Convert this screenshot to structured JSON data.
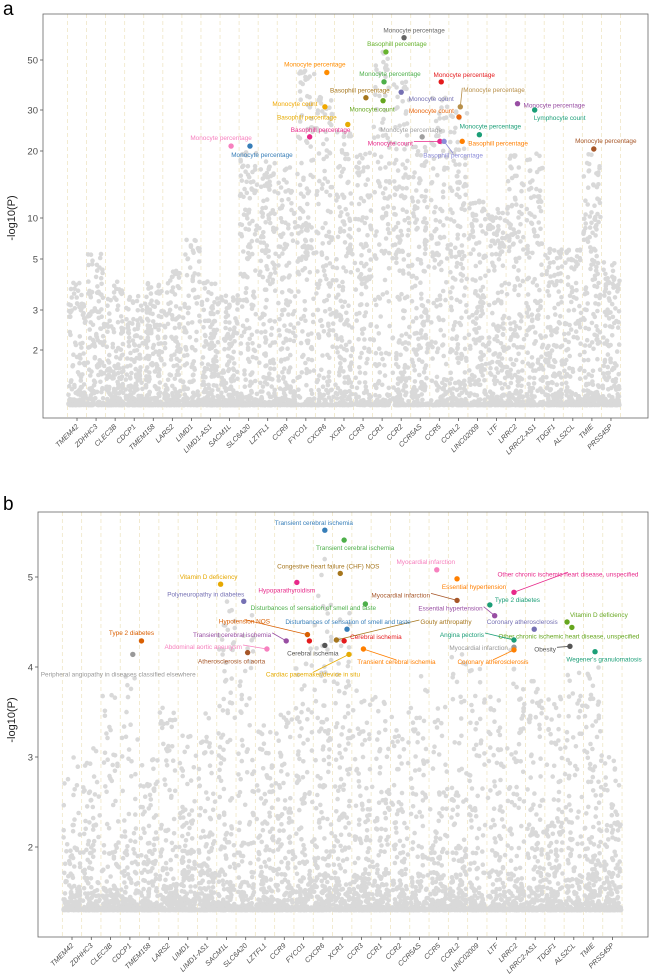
{
  "chart_data": [
    {
      "panel": "a",
      "type": "scatter",
      "ylabel": "-log10(P)",
      "yscale": "log",
      "yticks": [
        2,
        3,
        5,
        10,
        20,
        30,
        50
      ],
      "ylim": [
        1.3,
        80
      ],
      "genes": [
        "TMEM42",
        "ZDHHC3",
        "CLEC3B",
        "CDCP1",
        "TMEM158",
        "LARS2",
        "LIMD1",
        "LIMD1-AS1",
        "SACM1L",
        "SLC6A20",
        "LZTFL1",
        "CCR9",
        "FYCO1",
        "CXCR6",
        "XCR1",
        "CCR3",
        "CCR1",
        "CCR2",
        "CCR5AS",
        "CCR5",
        "CCRL2",
        "LINC02009",
        "LTF",
        "LRRC2",
        "LRRC2-AS1",
        "TDGF1",
        "ALS2CL",
        "TMIE",
        "PRSS45P"
      ],
      "background_max": [
        4,
        5.5,
        4,
        3.5,
        4,
        4.5,
        7,
        4,
        3.5,
        21,
        18,
        17,
        45,
        35,
        25,
        20,
        55,
        40,
        22,
        35,
        30,
        12,
        11,
        20,
        20,
        6,
        6,
        20,
        5
      ],
      "background_color": "#d9d9d9",
      "highlighted": [
        {
          "pos": 17.15,
          "value": 65,
          "label": "Monocyte percentage",
          "color": "#666666"
        },
        {
          "pos": 16.2,
          "value": 55,
          "label": "Basophill percentage",
          "color": "#66b32e"
        },
        {
          "pos": 13.1,
          "value": 44,
          "label": "Monocyte percentage",
          "color": "#ff8c00"
        },
        {
          "pos": 16.1,
          "value": 40,
          "label": "Monocyte percentage",
          "color": "#4daf4a"
        },
        {
          "pos": 19.1,
          "value": 40,
          "label": "Monocyte percentage",
          "color": "#e41a1c"
        },
        {
          "pos": 17.0,
          "value": 36,
          "label": "Monocyte count",
          "color": "#7570b3"
        },
        {
          "pos": 15.15,
          "value": 34,
          "label": "Basophill percentage",
          "color": "#a6761d"
        },
        {
          "pos": 16.05,
          "value": 33,
          "label": "Monocyte count",
          "color": "#66a61e"
        },
        {
          "pos": 13.0,
          "value": 31,
          "label": "Monocyte count",
          "color": "#f0a800"
        },
        {
          "pos": 20.1,
          "value": 31,
          "label": "Monocyte percentage",
          "color": "#b8904a"
        },
        {
          "pos": 20.03,
          "value": 28,
          "label": "Monocyte count",
          "color": "#e8660c"
        },
        {
          "pos": 23.1,
          "value": 32,
          "label": "Monocyte percentage",
          "color": "#984ea3"
        },
        {
          "pos": 24.0,
          "value": 30,
          "label": "Lymphocyte count",
          "color": "#1b9e77"
        },
        {
          "pos": 14.2,
          "value": 26,
          "label": "Basophill percentage",
          "color": "#e6ab02"
        },
        {
          "pos": 12.2,
          "value": 23,
          "label": "Basophill percentage",
          "color": "#e7298a"
        },
        {
          "pos": 18.1,
          "value": 23,
          "label": "Monocyte percentage",
          "color": "#a0a0a0"
        },
        {
          "pos": 21.1,
          "value": 23.5,
          "label": "Monocyte percentage",
          "color": "#1b9e77"
        },
        {
          "pos": 19.03,
          "value": 22,
          "label": "Monocyte count",
          "color": "#e7298a"
        },
        {
          "pos": 19.25,
          "value": 22,
          "label": "Basophill percentage",
          "color": "#8c8cd9"
        },
        {
          "pos": 20.2,
          "value": 22,
          "label": "Basophill percentage",
          "color": "#ff7f00"
        },
        {
          "pos": 8.08,
          "value": 21,
          "label": "Monocyte percentage",
          "color": "#f781bf"
        },
        {
          "pos": 9.07,
          "value": 21,
          "label": "Monocyte percentage",
          "color": "#377eb8"
        },
        {
          "pos": 27.1,
          "value": 20.4,
          "label": "Monocyte percentage",
          "color": "#a65628"
        }
      ]
    },
    {
      "panel": "b",
      "type": "scatter",
      "ylabel": "-log10(P)",
      "yscale": "linear",
      "yticks": [
        2,
        3,
        4,
        5
      ],
      "ylim": [
        1.3,
        5.5
      ],
      "genes": [
        "TMEM42",
        "ZDHHC3",
        "CLEC3B",
        "CDCP1",
        "TMEM158",
        "LARS2",
        "LIMD1",
        "LIMD1-AS1",
        "SACM1L",
        "SLC6A20",
        "LZTFL1",
        "CCR9",
        "FYCO1",
        "CXCR6",
        "XCR1",
        "CCR3",
        "CCR1",
        "CCR2",
        "CCR5AS",
        "CCR5",
        "CCRL2",
        "LINC02009",
        "LTF",
        "LRRC2",
        "LRRC2-AS1",
        "TDGF1",
        "ALS2CL",
        "TMIE",
        "PRSS45P"
      ],
      "background_max": [
        3.1,
        3.1,
        3.7,
        4.0,
        3.0,
        3.6,
        3.3,
        3.5,
        4.8,
        4.6,
        3.5,
        3.5,
        4.3,
        5.2,
        4.6,
        3.8,
        3.7,
        3.5,
        3.9,
        3.6,
        4.2,
        4.0,
        3.9,
        4.2,
        4.0,
        3.7,
        4.0,
        4.0,
        3.0
      ],
      "background_color": "#d9d9d9",
      "highlighted": [
        {
          "pos": 13.1,
          "value": 5.52,
          "label": "Transient cerebral ischemia",
          "color": "#377eb8"
        },
        {
          "pos": 14.1,
          "value": 5.41,
          "label": "Transient cerebral ischemia",
          "color": "#4daf4a"
        },
        {
          "pos": 13.9,
          "value": 5.04,
          "label": "Congestive heart failure (CHF) NOS",
          "color": "#a6761d"
        },
        {
          "pos": 18.9,
          "value": 5.08,
          "label": "Myocardial infarction",
          "color": "#f781bf"
        },
        {
          "pos": 19.95,
          "value": 4.98,
          "label": "Essential hypertension",
          "color": "#ff7f00"
        },
        {
          "pos": 22.9,
          "value": 4.83,
          "label": "Other chronic ischemic heart disease, unspecified",
          "color": "#e7298a"
        },
        {
          "pos": 7.7,
          "value": 4.92,
          "label": "Vitamin D deficiency",
          "color": "#e6a800"
        },
        {
          "pos": 11.65,
          "value": 4.94,
          "label": "Hypoparathyroidism",
          "color": "#e7298a"
        },
        {
          "pos": 8.9,
          "value": 4.73,
          "label": "Polyneuropathy in diabetes",
          "color": "#7570b3"
        },
        {
          "pos": 19.95,
          "value": 4.74,
          "label": "Myocardial infarction",
          "color": "#a65628"
        },
        {
          "pos": 15.2,
          "value": 4.7,
          "label": "Disturbances of sensation of smell and taste",
          "color": "#4daf4a"
        },
        {
          "pos": 21.65,
          "value": 4.69,
          "label": "Type 2 diabetes",
          "color": "#1b9e77"
        },
        {
          "pos": 21.9,
          "value": 4.57,
          "label": "Essential hypertension",
          "color": "#984ea3"
        },
        {
          "pos": 25.65,
          "value": 4.5,
          "label": "Vitamin D deficiency",
          "color": "#66a61e"
        },
        {
          "pos": 25.9,
          "value": 4.44,
          "label": "Other chronic ischemic heart disease, unspecified",
          "color": "#66a61e"
        },
        {
          "pos": 23.95,
          "value": 4.42,
          "label": "Coronary atherosclerosis",
          "color": "#7570b3"
        },
        {
          "pos": 13.7,
          "value": 4.3,
          "label": "Gouty arthropathy",
          "color": "#a6761d"
        },
        {
          "pos": 14.25,
          "value": 4.42,
          "label": "Disturbances of sensation of smell and taste",
          "color": "#377eb8"
        },
        {
          "pos": 12.2,
          "value": 4.36,
          "label": "Hypotension NOS",
          "color": "#d95f02"
        },
        {
          "pos": 11.1,
          "value": 4.29,
          "label": "Transient cerebral ischemia",
          "color": "#984ea3"
        },
        {
          "pos": 14.1,
          "value": 4.29,
          "label": "Cerebral ischemia",
          "color": "#e41a1c"
        },
        {
          "pos": 13.1,
          "value": 4.24,
          "label": "Cerebral ischemia",
          "color": "#555555"
        },
        {
          "pos": 3.6,
          "value": 4.29,
          "label": "Type 2 diabetes",
          "color": "#d95f02"
        },
        {
          "pos": 3.15,
          "value": 4.14,
          "label": "Peripheral angiopathy in diseases classified elsewhere",
          "color": "#999999"
        },
        {
          "pos": 10.1,
          "value": 4.2,
          "label": "Abdominal aortic aneurysm",
          "color": "#f781bf"
        },
        {
          "pos": 9.1,
          "value": 4.16,
          "label": "Atherosclerosis of aorta",
          "color": "#a65628"
        },
        {
          "pos": 14.35,
          "value": 4.14,
          "label": "Cardiac pacemaker/device in situ",
          "color": "#e6ab02"
        },
        {
          "pos": 15.1,
          "value": 4.2,
          "label": "Transient cerebral ischemia",
          "color": "#ff7f00"
        },
        {
          "pos": 22.9,
          "value": 4.22,
          "label": "Myocardial infarction",
          "color": "#999999"
        },
        {
          "pos": 22.9,
          "value": 4.19,
          "label": "Coronary atherosclerosis",
          "color": "#ff7f00"
        },
        {
          "pos": 25.8,
          "value": 4.23,
          "label": "Obesity",
          "color": "#555555"
        },
        {
          "pos": 27.1,
          "value": 4.17,
          "label": "Wegener's granulomatosis",
          "color": "#1b9e77"
        },
        {
          "pos": 22.9,
          "value": 4.3,
          "label": "Angina pectoris",
          "color": "#1b9e77"
        },
        {
          "pos": 12.3,
          "value": 4.29,
          "label": "",
          "color": "#e41a1c"
        }
      ]
    }
  ]
}
